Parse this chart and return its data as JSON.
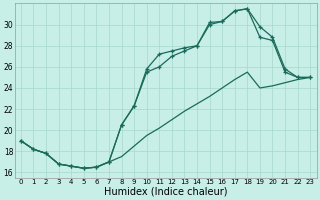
{
  "xlabel": "Humidex (Indice chaleur)",
  "bg_color": "#c8eee8",
  "grid_color": "#a8d8cc",
  "line_color": "#1a6b5a",
  "xlim": [
    -0.5,
    23.5
  ],
  "ylim": [
    15.5,
    32.0
  ],
  "xticks": [
    0,
    1,
    2,
    3,
    4,
    5,
    6,
    7,
    8,
    9,
    10,
    11,
    12,
    13,
    14,
    15,
    16,
    17,
    18,
    19,
    20,
    21,
    22,
    23
  ],
  "yticks": [
    16,
    18,
    20,
    22,
    24,
    26,
    28,
    30
  ],
  "line1_x": [
    0,
    1,
    2,
    3,
    4,
    5,
    6,
    7,
    8,
    9,
    10,
    11,
    12,
    13,
    14,
    15,
    16,
    17,
    18,
    19,
    20,
    21,
    22,
    23
  ],
  "line1_y": [
    19.0,
    18.2,
    17.8,
    16.8,
    16.6,
    16.4,
    16.5,
    17.0,
    20.5,
    22.3,
    25.8,
    27.2,
    27.5,
    27.8,
    28.0,
    30.2,
    30.3,
    31.3,
    31.5,
    29.8,
    28.8,
    25.8,
    25.0,
    25.0
  ],
  "line2_x": [
    0,
    1,
    2,
    3,
    4,
    5,
    6,
    7,
    8,
    9,
    10,
    11,
    12,
    13,
    14,
    15,
    16,
    17,
    18,
    19,
    20,
    21,
    22,
    23
  ],
  "line2_y": [
    19.0,
    18.2,
    17.8,
    16.8,
    16.6,
    16.4,
    16.5,
    17.0,
    20.5,
    22.3,
    25.5,
    26.0,
    27.0,
    27.5,
    28.0,
    30.0,
    30.3,
    31.3,
    31.5,
    28.8,
    28.5,
    25.5,
    25.0,
    25.0
  ],
  "line3_x": [
    0,
    1,
    2,
    3,
    4,
    5,
    6,
    7,
    8,
    9,
    10,
    11,
    12,
    13,
    14,
    15,
    16,
    17,
    18,
    19,
    20,
    21,
    22,
    23
  ],
  "line3_y": [
    19.0,
    18.2,
    17.8,
    16.8,
    16.6,
    16.4,
    16.5,
    17.0,
    17.5,
    18.5,
    19.5,
    20.2,
    21.0,
    21.8,
    22.5,
    23.2,
    24.0,
    24.8,
    25.5,
    24.0,
    24.2,
    24.5,
    24.8,
    25.0
  ]
}
